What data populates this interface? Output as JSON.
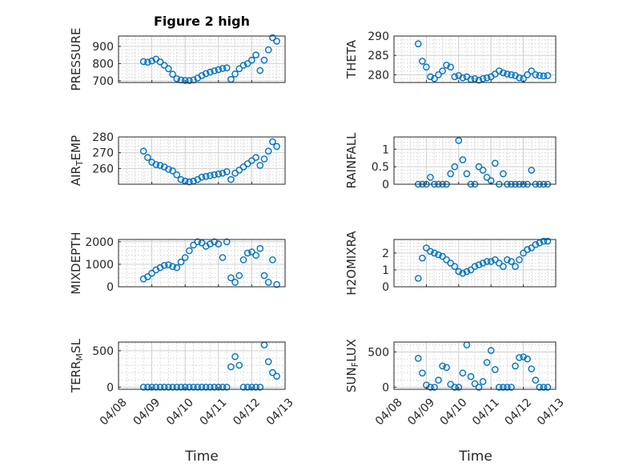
{
  "figure_title": "Figure 2 high",
  "chart_data": [
    {
      "type": "scatter",
      "title": "Figure 2 high",
      "ylabel": "PRESSURE",
      "ylabel_parts": [
        {
          "t": "PRESSURE",
          "s": ""
        }
      ],
      "ylim": [
        690,
        960
      ],
      "yticks": [
        700,
        800,
        900
      ],
      "x": [
        "04/08 18:00",
        "04/08 21:00",
        "04/09 00:00",
        "04/09 03:00",
        "04/09 06:00",
        "04/09 09:00",
        "04/09 12:00",
        "04/09 15:00",
        "04/09 18:00",
        "04/09 21:00",
        "04/10 00:00",
        "04/10 03:00",
        "04/10 06:00",
        "04/10 09:00",
        "04/10 12:00",
        "04/10 15:00",
        "04/10 18:00",
        "04/10 21:00",
        "04/11 00:00",
        "04/11 03:00",
        "04/11 06:00",
        "04/11 09:00",
        "04/11 12:00",
        "04/11 15:00",
        "04/11 18:00",
        "04/11 21:00",
        "04/12 00:00",
        "04/12 03:00",
        "04/12 06:00",
        "04/12 09:00",
        "04/12 12:00",
        "04/12 15:00",
        "04/12 18:00"
      ],
      "y": [
        812,
        808,
        815,
        826,
        810,
        790,
        770,
        738,
        712,
        705,
        702,
        701,
        705,
        716,
        730,
        742,
        750,
        758,
        765,
        772,
        775,
        708,
        740,
        770,
        790,
        800,
        820,
        850,
        760,
        820,
        880,
        950,
        930
      ]
    },
    {
      "type": "scatter",
      "ylabel": "THETA",
      "ylabel_parts": [
        {
          "t": "THETA",
          "s": ""
        }
      ],
      "ylim": [
        278,
        290
      ],
      "yticks": [
        280,
        285,
        290
      ],
      "x": [
        "04/08 18:00",
        "04/08 21:00",
        "04/09 00:00",
        "04/09 03:00",
        "04/09 06:00",
        "04/09 09:00",
        "04/09 12:00",
        "04/09 15:00",
        "04/09 18:00",
        "04/09 21:00",
        "04/10 00:00",
        "04/10 03:00",
        "04/10 06:00",
        "04/10 09:00",
        "04/10 12:00",
        "04/10 15:00",
        "04/10 18:00",
        "04/10 21:00",
        "04/11 00:00",
        "04/11 03:00",
        "04/11 06:00",
        "04/11 09:00",
        "04/11 12:00",
        "04/11 15:00",
        "04/11 18:00",
        "04/11 21:00",
        "04/12 00:00",
        "04/12 03:00",
        "04/12 06:00",
        "04/12 09:00",
        "04/12 12:00",
        "04/12 15:00",
        "04/12 18:00"
      ],
      "y": [
        288,
        283.5,
        282,
        279.5,
        279,
        280,
        281,
        282.5,
        282,
        279.5,
        279.8,
        279.2,
        279.5,
        278.8,
        279,
        278.6,
        279,
        279.2,
        279.5,
        280.2,
        281,
        280.5,
        280.2,
        280,
        279.8,
        279.2,
        279,
        280,
        281,
        280,
        279.8,
        279.7,
        279.8
      ]
    },
    {
      "type": "scatter",
      "ylabel": "AIR_TEMP",
      "ylabel_parts": [
        {
          "t": "AIR",
          "s": ""
        },
        {
          "t": "T",
          "s": "sub"
        },
        {
          "t": "EMP",
          "s": ""
        }
      ],
      "ylim": [
        250,
        280
      ],
      "yticks": [
        260,
        270,
        280
      ],
      "x": [
        "04/08 18:00",
        "04/08 21:00",
        "04/09 00:00",
        "04/09 03:00",
        "04/09 06:00",
        "04/09 09:00",
        "04/09 12:00",
        "04/09 15:00",
        "04/09 18:00",
        "04/09 21:00",
        "04/10 00:00",
        "04/10 03:00",
        "04/10 06:00",
        "04/10 09:00",
        "04/10 12:00",
        "04/10 15:00",
        "04/10 18:00",
        "04/10 21:00",
        "04/11 00:00",
        "04/11 03:00",
        "04/11 06:00",
        "04/11 09:00",
        "04/11 12:00",
        "04/11 15:00",
        "04/11 18:00",
        "04/11 21:00",
        "04/12 00:00",
        "04/12 03:00",
        "04/12 06:00",
        "04/12 09:00",
        "04/12 12:00",
        "04/12 15:00",
        "04/12 18:00"
      ],
      "y": [
        271,
        267,
        264,
        262.5,
        262,
        261,
        259.5,
        258.5,
        256,
        253,
        252,
        251.5,
        252,
        253,
        254.5,
        255,
        255.5,
        256,
        256.5,
        257,
        258,
        253,
        257,
        259,
        261,
        263,
        265,
        267,
        262,
        266,
        271,
        277,
        274
      ]
    },
    {
      "type": "scatter",
      "ylabel": "RAINFALL",
      "ylabel_parts": [
        {
          "t": "RAINFALL",
          "s": ""
        }
      ],
      "ylim": [
        0,
        1.35
      ],
      "yticks": [
        0,
        0.5,
        1
      ],
      "x": [
        "04/08 18:00",
        "04/08 21:00",
        "04/09 00:00",
        "04/09 03:00",
        "04/09 06:00",
        "04/09 09:00",
        "04/09 12:00",
        "04/09 15:00",
        "04/09 18:00",
        "04/09 21:00",
        "04/10 00:00",
        "04/10 03:00",
        "04/10 06:00",
        "04/10 09:00",
        "04/10 12:00",
        "04/10 15:00",
        "04/10 18:00",
        "04/10 21:00",
        "04/11 00:00",
        "04/11 03:00",
        "04/11 06:00",
        "04/11 09:00",
        "04/11 12:00",
        "04/11 15:00",
        "04/11 18:00",
        "04/11 21:00",
        "04/12 00:00",
        "04/12 03:00",
        "04/12 06:00",
        "04/12 09:00",
        "04/12 12:00",
        "04/12 15:00",
        "04/12 18:00"
      ],
      "y": [
        0,
        0,
        0,
        0.2,
        0,
        0,
        0,
        0,
        0.3,
        0.5,
        1.25,
        0.7,
        0.3,
        0,
        0,
        0.5,
        0.4,
        0.2,
        0.1,
        0.6,
        0,
        0.3,
        0,
        0,
        0,
        0,
        0,
        0,
        0.4,
        0,
        0,
        0,
        0
      ]
    },
    {
      "type": "scatter",
      "ylabel": "MIXDEPTH",
      "ylabel_parts": [
        {
          "t": "MIXDEPTH",
          "s": ""
        }
      ],
      "ylim": [
        0,
        2100
      ],
      "yticks": [
        0,
        1000,
        2000
      ],
      "x": [
        "04/08 18:00",
        "04/08 21:00",
        "04/09 00:00",
        "04/09 03:00",
        "04/09 06:00",
        "04/09 09:00",
        "04/09 12:00",
        "04/09 15:00",
        "04/09 18:00",
        "04/09 21:00",
        "04/10 00:00",
        "04/10 03:00",
        "04/10 06:00",
        "04/10 09:00",
        "04/10 12:00",
        "04/10 15:00",
        "04/10 18:00",
        "04/10 21:00",
        "04/11 00:00",
        "04/11 03:00",
        "04/11 06:00",
        "04/11 09:00",
        "04/11 12:00",
        "04/11 15:00",
        "04/11 18:00",
        "04/11 21:00",
        "04/12 00:00",
        "04/12 03:00",
        "04/12 06:00",
        "04/12 09:00",
        "04/12 12:00",
        "04/12 15:00",
        "04/12 18:00"
      ],
      "y": [
        350,
        450,
        600,
        750,
        850,
        950,
        980,
        900,
        850,
        1100,
        1300,
        1600,
        1850,
        2000,
        1950,
        1800,
        1900,
        2000,
        1900,
        1300,
        2000,
        400,
        200,
        500,
        1200,
        1500,
        1550,
        1400,
        1700,
        500,
        200,
        1200,
        100
      ]
    },
    {
      "type": "scatter",
      "ylabel": "H2OMIXRA",
      "ylabel_parts": [
        {
          "t": "H2OMIXRA",
          "s": ""
        }
      ],
      "ylim": [
        0,
        2.8
      ],
      "yticks": [
        0,
        1,
        2
      ],
      "x": [
        "04/08 18:00",
        "04/08 21:00",
        "04/09 00:00",
        "04/09 03:00",
        "04/09 06:00",
        "04/09 09:00",
        "04/09 12:00",
        "04/09 15:00",
        "04/09 18:00",
        "04/09 21:00",
        "04/10 00:00",
        "04/10 03:00",
        "04/10 06:00",
        "04/10 09:00",
        "04/10 12:00",
        "04/10 15:00",
        "04/10 18:00",
        "04/10 21:00",
        "04/11 00:00",
        "04/11 03:00",
        "04/11 06:00",
        "04/11 09:00",
        "04/11 12:00",
        "04/11 15:00",
        "04/11 18:00",
        "04/11 21:00",
        "04/12 00:00",
        "04/12 03:00",
        "04/12 06:00",
        "04/12 09:00",
        "04/12 12:00",
        "04/12 15:00",
        "04/12 18:00"
      ],
      "y": [
        0.5,
        1.7,
        2.3,
        2.1,
        2.0,
        1.9,
        1.8,
        1.6,
        1.4,
        1.2,
        0.9,
        0.8,
        0.9,
        1.0,
        1.2,
        1.3,
        1.4,
        1.5,
        1.5,
        1.6,
        1.4,
        1.2,
        1.6,
        1.5,
        1.2,
        1.6,
        2.0,
        2.2,
        2.3,
        2.5,
        2.6,
        2.7,
        2.7
      ]
    },
    {
      "type": "scatter",
      "ylabel": "TERR_MSL",
      "ylabel_parts": [
        {
          "t": "TERR",
          "s": ""
        },
        {
          "t": "M",
          "s": "sub"
        },
        {
          "t": "SL",
          "s": ""
        }
      ],
      "ylim": [
        -30,
        620
      ],
      "yticks": [
        0,
        500
      ],
      "x": [
        "04/08 18:00",
        "04/08 21:00",
        "04/09 00:00",
        "04/09 03:00",
        "04/09 06:00",
        "04/09 09:00",
        "04/09 12:00",
        "04/09 15:00",
        "04/09 18:00",
        "04/09 21:00",
        "04/10 00:00",
        "04/10 03:00",
        "04/10 06:00",
        "04/10 09:00",
        "04/10 12:00",
        "04/10 15:00",
        "04/10 18:00",
        "04/10 21:00",
        "04/11 00:00",
        "04/11 03:00",
        "04/11 06:00",
        "04/11 09:00",
        "04/11 12:00",
        "04/11 15:00",
        "04/11 18:00",
        "04/11 21:00",
        "04/12 00:00",
        "04/12 03:00",
        "04/12 06:00",
        "04/12 09:00",
        "04/12 12:00",
        "04/12 15:00",
        "04/12 18:00"
      ],
      "y": [
        0,
        0,
        0,
        0,
        0,
        0,
        0,
        0,
        0,
        0,
        0,
        0,
        0,
        0,
        0,
        0,
        0,
        0,
        0,
        0,
        0,
        280,
        420,
        300,
        0,
        0,
        0,
        0,
        0,
        580,
        350,
        200,
        150
      ]
    },
    {
      "type": "scatter",
      "ylabel": "SUN_FLUX",
      "ylabel_parts": [
        {
          "t": "SUN",
          "s": ""
        },
        {
          "t": "F",
          "s": "sub"
        },
        {
          "t": "LUX",
          "s": ""
        }
      ],
      "ylim": [
        -30,
        640
      ],
      "yticks": [
        0,
        500
      ],
      "x": [
        "04/08 18:00",
        "04/08 21:00",
        "04/09 00:00",
        "04/09 03:00",
        "04/09 06:00",
        "04/09 09:00",
        "04/09 12:00",
        "04/09 15:00",
        "04/09 18:00",
        "04/09 21:00",
        "04/10 00:00",
        "04/10 03:00",
        "04/10 06:00",
        "04/10 09:00",
        "04/10 12:00",
        "04/10 15:00",
        "04/10 18:00",
        "04/10 21:00",
        "04/11 00:00",
        "04/11 03:00",
        "04/11 06:00",
        "04/11 09:00",
        "04/11 12:00",
        "04/11 15:00",
        "04/11 18:00",
        "04/11 21:00",
        "04/12 00:00",
        "04/12 03:00",
        "04/12 06:00",
        "04/12 09:00",
        "04/12 12:00",
        "04/12 15:00",
        "04/12 18:00"
      ],
      "y": [
        410,
        200,
        30,
        0,
        0,
        100,
        300,
        280,
        40,
        0,
        0,
        200,
        600,
        150,
        50,
        0,
        80,
        350,
        520,
        250,
        0,
        0,
        0,
        0,
        300,
        420,
        430,
        400,
        260,
        100,
        0,
        0,
        0
      ]
    }
  ],
  "x_axis": {
    "xlabel": "Time",
    "tick_labels": [
      "04/08",
      "04/09",
      "04/10",
      "04/11",
      "04/12",
      "04/13"
    ],
    "xlim": [
      "04/08 00:00",
      "04/13 00:00"
    ]
  },
  "colors": {
    "marker": "#0072BD",
    "axis": "#262626",
    "grid": "#d0d0d0",
    "background": "#ffffff"
  },
  "grid": true,
  "marker": "circle"
}
